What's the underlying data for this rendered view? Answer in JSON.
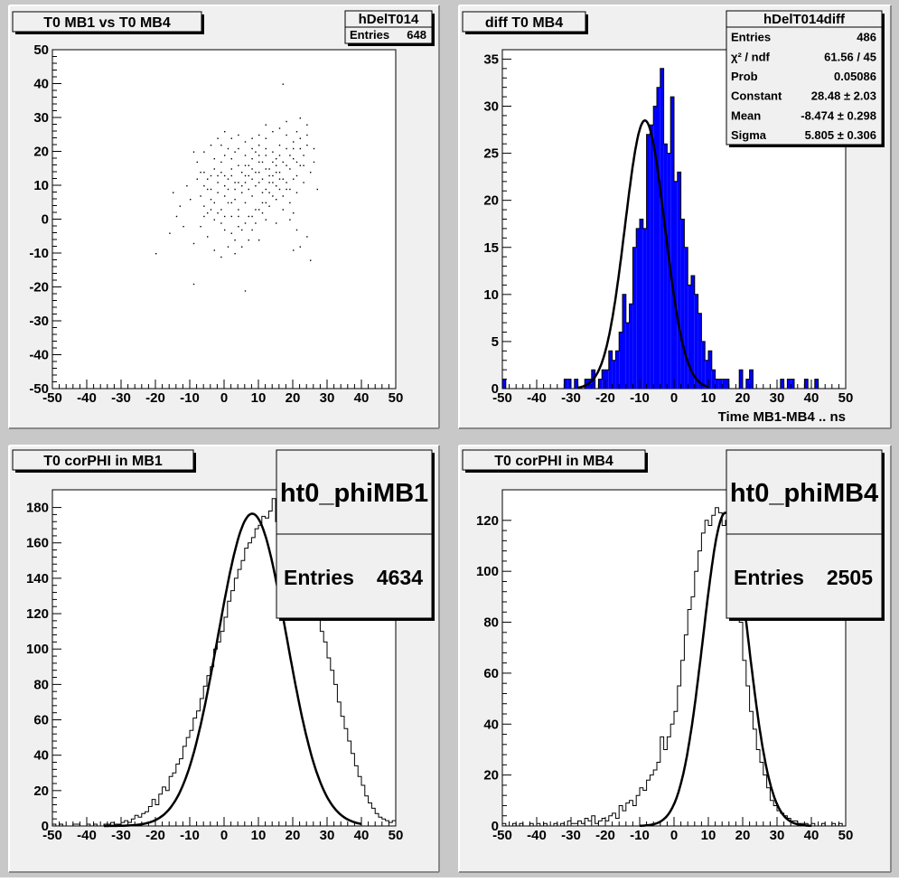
{
  "canvas": {
    "background": "#c8c8c8",
    "pad_fill": "#f0f0f0",
    "frame_fill": "#ffffff"
  },
  "chart_data": [
    {
      "type": "scatter",
      "title": "T0 MB1 vs T0 MB4",
      "stats": {
        "name": "hDelT014",
        "rows": [
          {
            "label": "Entries",
            "value": "648"
          }
        ]
      },
      "xlim": [
        -50,
        50
      ],
      "ylim": [
        -50,
        50
      ],
      "x_ticks": [
        -50,
        -40,
        -30,
        -20,
        -10,
        0,
        10,
        20,
        30,
        40,
        50
      ],
      "y_ticks": [
        -50,
        -40,
        -30,
        -20,
        -10,
        0,
        10,
        20,
        30,
        40,
        50
      ],
      "xlabel": "",
      "ylabel": "",
      "points": [
        [
          -20,
          -10
        ],
        [
          -9,
          -19
        ],
        [
          6,
          -21
        ],
        [
          17,
          40
        ],
        [
          25,
          -12
        ],
        [
          -1,
          22
        ],
        [
          1,
          21
        ],
        [
          -8,
          12
        ],
        [
          -4,
          3
        ],
        [
          -2,
          8
        ],
        [
          0,
          10
        ],
        [
          1,
          12
        ],
        [
          3,
          6
        ],
        [
          5,
          14
        ],
        [
          6,
          16
        ],
        [
          8,
          18
        ],
        [
          9,
          20
        ],
        [
          10,
          22
        ],
        [
          12,
          24
        ],
        [
          14,
          20
        ],
        [
          15,
          18
        ],
        [
          16,
          22
        ],
        [
          18,
          25
        ],
        [
          20,
          21
        ],
        [
          21,
          26
        ],
        [
          22,
          24
        ],
        [
          23,
          19
        ],
        [
          24,
          22
        ],
        [
          19,
          15
        ],
        [
          17,
          12
        ],
        [
          13,
          8
        ],
        [
          11,
          5
        ],
        [
          9,
          3
        ],
        [
          7,
          1
        ],
        [
          4,
          -2
        ],
        [
          2,
          -4
        ],
        [
          -1,
          -1
        ],
        [
          -3,
          0
        ],
        [
          -5,
          2
        ],
        [
          -6,
          4
        ],
        [
          -7,
          7
        ],
        [
          -6,
          10
        ],
        [
          -4,
          13
        ],
        [
          -3,
          15
        ],
        [
          -1,
          17
        ],
        [
          0,
          19
        ],
        [
          2,
          18
        ],
        [
          3,
          20
        ],
        [
          4,
          16
        ],
        [
          6,
          11
        ],
        [
          7,
          9
        ],
        [
          8,
          12
        ],
        [
          10,
          14
        ],
        [
          11,
          17
        ],
        [
          12,
          19
        ],
        [
          13,
          15
        ],
        [
          14,
          13
        ],
        [
          15,
          16
        ],
        [
          16,
          12
        ],
        [
          18,
          9
        ],
        [
          19,
          5
        ],
        [
          20,
          2
        ],
        [
          21,
          -3
        ],
        [
          22,
          -8
        ],
        [
          24,
          -5
        ],
        [
          20,
          -9
        ],
        [
          15,
          -1
        ],
        [
          12,
          0
        ],
        [
          10,
          -6
        ],
        [
          8,
          -3
        ],
        [
          5,
          -8
        ],
        [
          3,
          -6
        ],
        [
          0,
          -3
        ],
        [
          -2,
          2
        ],
        [
          -4,
          6
        ],
        [
          -5,
          9
        ],
        [
          -6,
          14
        ],
        [
          -8,
          17
        ],
        [
          -9,
          20
        ],
        [
          -10,
          6
        ],
        [
          -11,
          10
        ],
        [
          -12,
          -2
        ],
        [
          -13,
          4
        ],
        [
          -14,
          1
        ],
        [
          -15,
          8
        ],
        [
          -16,
          -4
        ],
        [
          -9,
          -7
        ],
        [
          -7,
          -2
        ],
        [
          -5,
          -5
        ],
        [
          -3,
          -9
        ],
        [
          -1,
          -11
        ],
        [
          1,
          -8
        ],
        [
          3,
          -10
        ],
        [
          5,
          -3
        ],
        [
          7,
          -6
        ],
        [
          9,
          -1
        ],
        [
          11,
          2
        ],
        [
          13,
          4
        ],
        [
          15,
          6
        ],
        [
          17,
          3
        ],
        [
          19,
          0
        ],
        [
          21,
          8
        ],
        [
          23,
          11
        ],
        [
          25,
          14
        ],
        [
          26,
          17
        ],
        [
          27,
          9
        ],
        [
          24,
          28
        ],
        [
          22,
          30
        ],
        [
          18,
          29
        ],
        [
          16,
          27
        ],
        [
          14,
          26
        ],
        [
          12,
          28
        ],
        [
          10,
          25
        ],
        [
          8,
          24
        ],
        [
          6,
          23
        ],
        [
          4,
          25
        ],
        [
          2,
          24
        ],
        [
          0,
          26
        ],
        [
          -2,
          24
        ],
        [
          -4,
          22
        ],
        [
          -6,
          20
        ],
        [
          -3,
          18
        ],
        [
          -1,
          14
        ],
        [
          1,
          9
        ],
        [
          3,
          11
        ],
        [
          5,
          8
        ],
        [
          7,
          13
        ],
        [
          9,
          10
        ],
        [
          11,
          8
        ],
        [
          13,
          11
        ],
        [
          15,
          10
        ],
        [
          17,
          7
        ],
        [
          19,
          9
        ],
        [
          21,
          13
        ],
        [
          23,
          16
        ],
        [
          20,
          18
        ],
        [
          18,
          16
        ],
        [
          16,
          14
        ],
        [
          14,
          11
        ],
        [
          12,
          9
        ],
        [
          10,
          11
        ],
        [
          8,
          7
        ],
        [
          6,
          5
        ],
        [
          4,
          3
        ],
        [
          2,
          5
        ],
        [
          0,
          7
        ],
        [
          -2,
          11
        ],
        [
          -4,
          9
        ],
        [
          -6,
          1
        ],
        [
          2,
          13
        ],
        [
          4,
          11
        ],
        [
          6,
          13
        ],
        [
          8,
          15
        ],
        [
          10,
          17
        ],
        [
          12,
          15
        ],
        [
          14,
          17
        ],
        [
          16,
          19
        ],
        [
          18,
          21
        ],
        [
          20,
          23
        ],
        [
          22,
          21
        ],
        [
          12,
          21
        ],
        [
          10,
          19
        ],
        [
          8,
          21
        ],
        [
          6,
          19
        ],
        [
          4,
          21
        ],
        [
          2,
          15
        ],
        [
          0,
          13
        ],
        [
          -2,
          13
        ],
        [
          5,
          10
        ],
        [
          7,
          16
        ],
        [
          9,
          14
        ],
        [
          11,
          12
        ],
        [
          13,
          13
        ],
        [
          15,
          14
        ],
        [
          17,
          17
        ],
        [
          19,
          19
        ],
        [
          21,
          17
        ],
        [
          3,
          9
        ],
        [
          1,
          5
        ],
        [
          -1,
          3
        ],
        [
          -3,
          5
        ],
        [
          -5,
          12
        ],
        [
          -7,
          14
        ],
        [
          24,
          25
        ],
        [
          26,
          21
        ],
        [
          22,
          16
        ],
        [
          20,
          12
        ],
        [
          18,
          11
        ],
        [
          16,
          9
        ],
        [
          14,
          7
        ],
        [
          12,
          5
        ],
        [
          10,
          3
        ],
        [
          8,
          1
        ],
        [
          6,
          -1
        ],
        [
          4,
          1
        ],
        [
          2,
          1
        ],
        [
          0,
          1
        ]
      ]
    },
    {
      "type": "bar",
      "title": "diff T0 MB4",
      "stats": {
        "name": "hDelT014diff",
        "rows": [
          {
            "label": "Entries",
            "value": "486"
          },
          {
            "label": "χ² / ndf",
            "value": "61.56 / 45"
          },
          {
            "label": "Prob",
            "value": "0.05086"
          },
          {
            "label": "Constant",
            "value": "28.48 ± 2.03"
          },
          {
            "label": "Mean",
            "value": "-8.474 ± 0.298"
          },
          {
            "label": "Sigma",
            "value": "5.805 ± 0.306"
          }
        ]
      },
      "xlim": [
        -50,
        50
      ],
      "ylim": [
        0,
        36
      ],
      "x_ticks": [
        -50,
        -40,
        -30,
        -20,
        -10,
        0,
        10,
        20,
        30,
        40,
        50
      ],
      "y_ticks": [
        0,
        5,
        10,
        15,
        20,
        25,
        30,
        35
      ],
      "xlabel": "Time MB1-MB4  ..  ns",
      "ylabel": "",
      "bar_color": "#0000ff",
      "bins_from": -50,
      "bin_width": 1,
      "values": [
        1,
        0,
        0,
        0,
        0,
        0,
        0,
        0,
        0,
        0,
        0,
        0,
        0,
        0,
        0,
        0,
        0,
        0,
        1,
        1,
        0,
        1,
        0,
        0,
        1,
        1,
        2,
        0,
        1,
        2,
        2,
        4,
        3,
        4,
        6,
        10,
        7,
        9,
        15,
        17,
        18,
        17,
        27,
        28,
        30,
        32,
        34,
        26,
        25,
        31,
        22,
        23,
        18,
        15,
        11,
        12,
        10,
        8,
        5,
        3,
        4,
        2,
        1,
        1,
        1,
        1,
        0,
        0,
        0,
        2,
        0,
        1,
        2,
        0,
        0,
        0,
        0,
        0,
        0,
        0,
        0,
        1,
        0,
        1,
        1,
        0,
        0,
        0,
        1,
        0,
        0,
        1,
        0,
        0,
        0,
        0,
        0,
        0,
        0,
        0
      ],
      "fit": {
        "type": "gaus",
        "constant": 28.48,
        "mean": -8.474,
        "sigma": 5.805,
        "range": [
          -28,
          10
        ]
      }
    },
    {
      "type": "line",
      "title": "T0 corPHI in MB1",
      "stats": {
        "name": "ht0_phiMB1",
        "rows": [
          {
            "label": "Entries",
            "value": "4634"
          }
        ]
      },
      "xlim": [
        -50,
        50
      ],
      "ylim": [
        0,
        190
      ],
      "x_ticks": [
        -50,
        -40,
        -30,
        -20,
        -10,
        0,
        10,
        20,
        30,
        40,
        50
      ],
      "y_ticks": [
        0,
        20,
        40,
        60,
        80,
        100,
        120,
        140,
        160,
        180
      ],
      "xlabel": "",
      "ylabel": "",
      "bins_from": -50,
      "bin_width": 1,
      "values": [
        1,
        0,
        1,
        0,
        0,
        0,
        1,
        1,
        0,
        0,
        1,
        0,
        1,
        0,
        0,
        1,
        1,
        2,
        1,
        1,
        2,
        3,
        2,
        4,
        6,
        5,
        7,
        8,
        11,
        15,
        12,
        18,
        22,
        20,
        28,
        30,
        35,
        38,
        45,
        50,
        54,
        61,
        65,
        72,
        79,
        85,
        90,
        100,
        104,
        110,
        118,
        127,
        133,
        140,
        145,
        150,
        157,
        160,
        163,
        168,
        170,
        175,
        174,
        178,
        185,
        172,
        178,
        182,
        171,
        176,
        168,
        165,
        160,
        152,
        145,
        138,
        127,
        120,
        110,
        104,
        95,
        88,
        80,
        70,
        62,
        55,
        48,
        41,
        34,
        28,
        23,
        17,
        13,
        10,
        7,
        5,
        4,
        3,
        2,
        3
      ],
      "fit": {
        "type": "gaus",
        "constant": 176.5,
        "mean": 8.2,
        "sigma": 10.0,
        "range": [
          -35,
          40
        ]
      }
    },
    {
      "type": "line",
      "title": "T0 corPHI in MB4",
      "stats": {
        "name": "ht0_phiMB4",
        "rows": [
          {
            "label": "Entries",
            "value": "2505"
          }
        ]
      },
      "xlim": [
        -50,
        50
      ],
      "ylim": [
        0,
        132
      ],
      "x_ticks": [
        -50,
        -40,
        -30,
        -20,
        -10,
        0,
        10,
        20,
        30,
        40,
        50
      ],
      "y_ticks": [
        0,
        20,
        40,
        60,
        80,
        100,
        120
      ],
      "xlabel": "",
      "ylabel": "",
      "bins_from": -50,
      "bin_width": 1,
      "values": [
        1,
        0,
        0,
        1,
        0,
        1,
        0,
        0,
        1,
        0,
        1,
        0,
        1,
        0,
        0,
        1,
        0,
        1,
        0,
        2,
        1,
        1,
        2,
        1,
        3,
        2,
        4,
        1,
        2,
        3,
        2,
        4,
        5,
        3,
        8,
        6,
        9,
        10,
        8,
        12,
        15,
        14,
        18,
        20,
        22,
        25,
        35,
        30,
        35,
        40,
        45,
        55,
        65,
        75,
        85,
        90,
        100,
        108,
        115,
        120,
        118,
        122,
        125,
        123,
        118,
        120,
        112,
        104,
        90,
        80,
        65,
        55,
        45,
        38,
        30,
        25,
        20,
        15,
        10,
        8,
        6,
        5,
        4,
        3,
        2,
        2,
        1,
        1,
        1,
        0,
        1,
        0,
        0,
        1,
        0,
        0,
        1,
        0,
        1,
        0
      ],
      "fit": {
        "type": "gaus",
        "constant": 123.0,
        "mean": 15.0,
        "sigma": 6.5,
        "range": [
          -10,
          40
        ]
      }
    }
  ]
}
